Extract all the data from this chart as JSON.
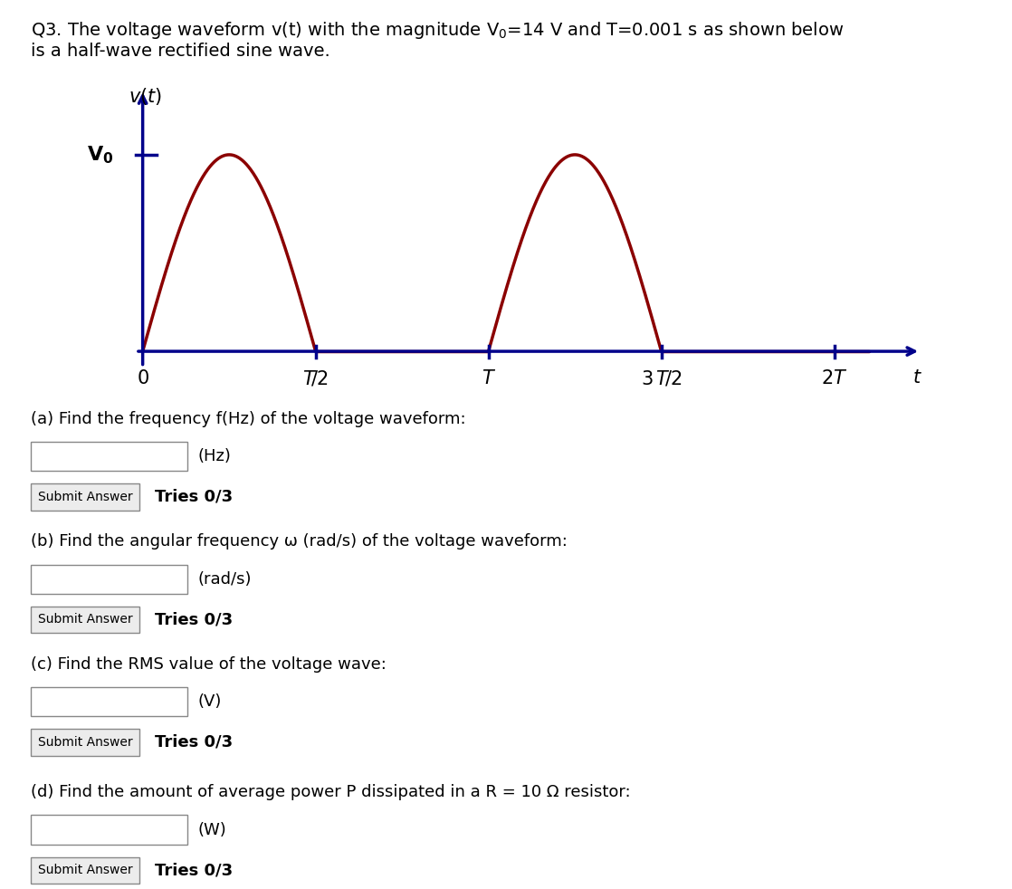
{
  "axis_color": "#00008B",
  "wave_color": "#8B0000",
  "wave_linewidth": 2.5,
  "axis_linewidth": 2.5,
  "background_color": "#ffffff",
  "title_line1": "Q3. The voltage waveform v(t) with the magnitude V₀=14 V and T=0.001 s as shown below",
  "title_line2": "is a half-wave rectified sine wave.",
  "questions": [
    {
      "label": "(a) Find the frequency f(Hz) of the voltage waveform:",
      "unit": "(Hz)"
    },
    {
      "label": "(b) Find the angular frequency ω (rad/s) of the voltage waveform:",
      "unit": "(rad/s)"
    },
    {
      "label": "(c) Find the RMS value of the voltage wave:",
      "unit": "(V)"
    },
    {
      "label": "(d) Find the amount of average power P dissipated in a R = 10 Ω resistor:",
      "unit": "(W)"
    }
  ],
  "submit_text": "Submit Answer",
  "tries_text": "Tries 0/3",
  "fontsize_title": 14,
  "fontsize_question": 13,
  "fontsize_ticks": 15,
  "fontsize_axis_label": 15,
  "fontsize_V0": 16
}
